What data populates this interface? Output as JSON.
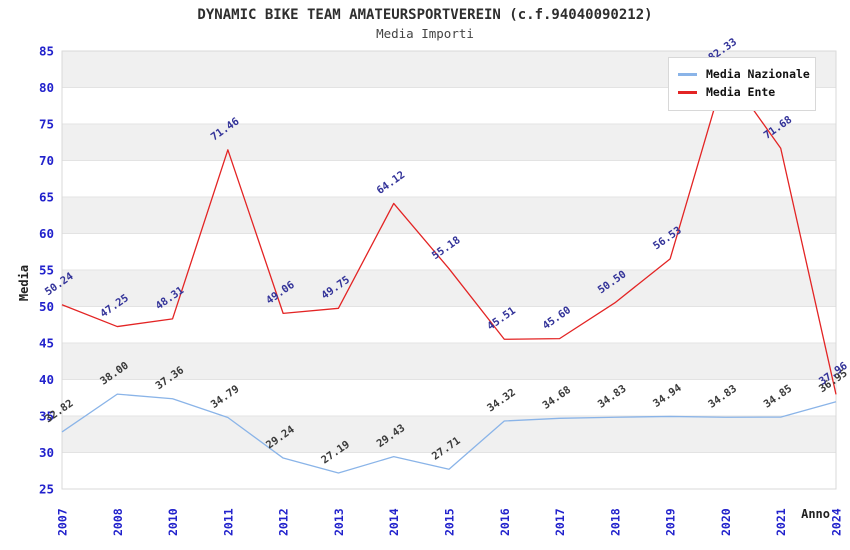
{
  "title": "DYNAMIC BIKE TEAM AMATEURSPORTVEREIN (c.f.94040090212)",
  "subtitle": "Media Importi",
  "axes": {
    "y_label": "Media",
    "x_label": "Anno",
    "y_ticks": [
      25,
      30,
      35,
      40,
      45,
      50,
      55,
      60,
      65,
      70,
      75,
      80,
      85
    ],
    "tick_color": "#2222cc"
  },
  "legend": {
    "items": [
      {
        "label": "Media Nazionale",
        "color": "#8ab4e8"
      },
      {
        "label": "Media Ente",
        "color": "#e32424"
      }
    ]
  },
  "chart_data": {
    "type": "line",
    "title": "DYNAMIC BIKE TEAM AMATEURSPORTVEREIN (c.f.94040090212)",
    "subtitle": "Media Importi",
    "xlabel": "Anno",
    "ylabel": "Media",
    "categories": [
      "2007",
      "2008",
      "2010",
      "2011",
      "2012",
      "2013",
      "2014",
      "2015",
      "2016",
      "2017",
      "2018",
      "2019",
      "2020",
      "2021",
      "2024"
    ],
    "series": [
      {
        "name": "Media Nazionale",
        "color": "#8ab4e8",
        "label_color": "#3a3a3a",
        "values": [
          32.82,
          38.0,
          37.36,
          34.79,
          29.24,
          27.19,
          29.43,
          27.71,
          34.32,
          34.68,
          34.83,
          34.94,
          34.83,
          34.85,
          36.95
        ]
      },
      {
        "name": "Media Ente",
        "color": "#e32424",
        "label_color": "#333399",
        "values": [
          50.24,
          47.25,
          48.31,
          71.46,
          49.06,
          49.75,
          64.12,
          55.18,
          45.51,
          45.6,
          50.5,
          56.53,
          82.33,
          71.68,
          37.96
        ]
      }
    ],
    "ylim": [
      25,
      85
    ],
    "ytick_step": 5,
    "grid": "alternating-horizontal-bands",
    "band_color": "#f0f0f0",
    "plot_border_color": "#d9d9d9",
    "legend_position": "top-right",
    "point_labels_visible": true,
    "notes": "2020 Media Ente label partially hidden behind legend; 2024 labels of both series overlap"
  }
}
